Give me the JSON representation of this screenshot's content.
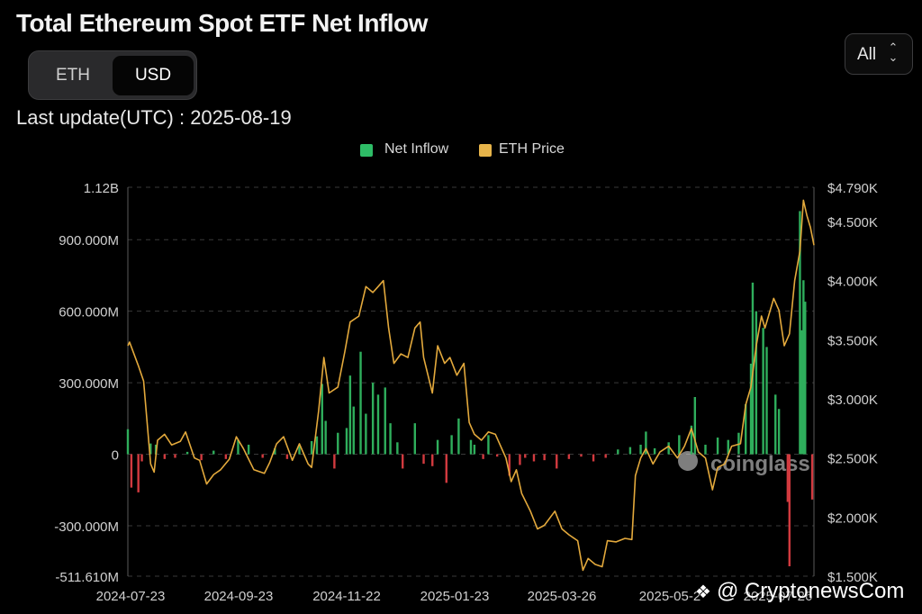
{
  "title": "Total Ethereum Spot ETF Net Inflow",
  "currency_toggle": {
    "options": [
      "ETH",
      "USD"
    ],
    "selected": "USD"
  },
  "range_select": {
    "value": "All"
  },
  "last_update": "Last update(UTC) : 2025-08-19",
  "watermark": "coinglass",
  "credit": {
    "mark": "❖",
    "text": "@ CryptonewsCom"
  },
  "colors": {
    "inflow": "#2fae5c",
    "outflow": "#d23a3f",
    "price": "#e3a93c",
    "legend_inflow": "#2ebd67",
    "legend_price": "#e7b44a",
    "grid": "#3a3a3a"
  },
  "chart_data": {
    "type": "bar",
    "legend": [
      "Net Inflow",
      "ETH Price"
    ],
    "legend_position": "top-center",
    "grid": "horizontal dashed",
    "x_tick_labels": [
      "2024-07-23",
      "2024-09-23",
      "2024-11-22",
      "2025-01-23",
      "2025-03-26",
      "2025-05-2",
      "2025-07-26"
    ],
    "left_axis": {
      "ticks": [
        -511610000,
        -300000000,
        0,
        300000000,
        600000000,
        900000000,
        1120000000
      ],
      "tick_labels": [
        "-511.610M",
        "-300.000M",
        "0",
        "300.000M",
        "600.000M",
        "900.000M",
        "1.12B"
      ],
      "range": [
        -511610000,
        1120000000
      ]
    },
    "right_axis": {
      "ticks": [
        1500,
        2000,
        2500,
        3000,
        3500,
        4000,
        4500,
        4790
      ],
      "tick_labels": [
        "$1.500K",
        "$2.000K",
        "$2.500K",
        "$3.000K",
        "$3.500K",
        "$4.000K",
        "$4.500K",
        "$4.790K"
      ],
      "range": [
        1500,
        4790
      ]
    },
    "series": [
      {
        "name": "Net Inflow",
        "axis": "left",
        "points": [
          [
            "2024-07-23",
            105000000
          ],
          [
            "2024-07-25",
            -140000000
          ],
          [
            "2024-07-29",
            -160000000
          ],
          [
            "2024-07-31",
            -30000000
          ],
          [
            "2024-08-05",
            45000000
          ],
          [
            "2024-08-08",
            40000000
          ],
          [
            "2024-08-13",
            -20000000
          ],
          [
            "2024-08-19",
            -15000000
          ],
          [
            "2024-08-26",
            10000000
          ],
          [
            "2024-09-03",
            -25000000
          ],
          [
            "2024-09-10",
            15000000
          ],
          [
            "2024-09-17",
            -20000000
          ],
          [
            "2024-09-24",
            60000000
          ],
          [
            "2024-09-30",
            40000000
          ],
          [
            "2024-10-08",
            -15000000
          ],
          [
            "2024-10-15",
            25000000
          ],
          [
            "2024-10-22",
            -20000000
          ],
          [
            "2024-10-29",
            40000000
          ],
          [
            "2024-11-05",
            55000000
          ],
          [
            "2024-11-08",
            75000000
          ],
          [
            "2024-11-11",
            295000000
          ],
          [
            "2024-11-13",
            140000000
          ],
          [
            "2024-11-18",
            -60000000
          ],
          [
            "2024-11-20",
            90000000
          ],
          [
            "2024-11-25",
            110000000
          ],
          [
            "2024-11-27",
            330000000
          ],
          [
            "2024-11-29",
            200000000
          ],
          [
            "2024-12-03",
            430000000
          ],
          [
            "2024-12-06",
            170000000
          ],
          [
            "2024-12-10",
            300000000
          ],
          [
            "2024-12-13",
            250000000
          ],
          [
            "2024-12-17",
            280000000
          ],
          [
            "2024-12-20",
            130000000
          ],
          [
            "2024-12-24",
            50000000
          ],
          [
            "2024-12-27",
            -60000000
          ],
          [
            "2025-01-03",
            130000000
          ],
          [
            "2025-01-08",
            -40000000
          ],
          [
            "2025-01-13",
            -50000000
          ],
          [
            "2025-01-16",
            60000000
          ],
          [
            "2025-01-21",
            -120000000
          ],
          [
            "2025-01-24",
            80000000
          ],
          [
            "2025-01-28",
            150000000
          ],
          [
            "2025-02-04",
            60000000
          ],
          [
            "2025-02-06",
            40000000
          ],
          [
            "2025-02-11",
            -20000000
          ],
          [
            "2025-02-14",
            80000000
          ],
          [
            "2025-02-19",
            -10000000
          ],
          [
            "2025-02-26",
            -90000000
          ],
          [
            "2025-03-04",
            -45000000
          ],
          [
            "2025-03-07",
            -15000000
          ],
          [
            "2025-03-12",
            -30000000
          ],
          [
            "2025-03-18",
            -25000000
          ],
          [
            "2025-03-25",
            -60000000
          ],
          [
            "2025-04-01",
            -20000000
          ],
          [
            "2025-04-08",
            -10000000
          ],
          [
            "2025-04-15",
            -30000000
          ],
          [
            "2025-04-22",
            -15000000
          ],
          [
            "2025-04-29",
            20000000
          ],
          [
            "2025-05-06",
            30000000
          ],
          [
            "2025-05-12",
            40000000
          ],
          [
            "2025-05-15",
            95000000
          ],
          [
            "2025-05-20",
            25000000
          ],
          [
            "2025-05-28",
            50000000
          ],
          [
            "2025-06-03",
            80000000
          ],
          [
            "2025-06-10",
            120000000
          ],
          [
            "2025-06-12",
            240000000
          ],
          [
            "2025-06-18",
            40000000
          ],
          [
            "2025-06-25",
            70000000
          ],
          [
            "2025-07-01",
            60000000
          ],
          [
            "2025-07-07",
            90000000
          ],
          [
            "2025-07-11",
            210000000
          ],
          [
            "2025-07-14",
            380000000
          ],
          [
            "2025-07-15",
            720000000
          ],
          [
            "2025-07-17",
            600000000
          ],
          [
            "2025-07-21",
            530000000
          ],
          [
            "2025-07-23",
            450000000
          ],
          [
            "2025-07-28",
            250000000
          ],
          [
            "2025-07-30",
            190000000
          ],
          [
            "2025-08-04",
            -200000000
          ],
          [
            "2025-08-05",
            -470000000
          ],
          [
            "2025-08-11",
            1020000000
          ],
          [
            "2025-08-12",
            520000000
          ],
          [
            "2025-08-13",
            730000000
          ],
          [
            "2025-08-14",
            640000000
          ],
          [
            "2025-08-18",
            -190000000
          ]
        ]
      },
      {
        "name": "ETH Price",
        "axis": "right",
        "points": [
          [
            "2024-07-23",
            3450
          ],
          [
            "2024-07-24",
            3480
          ],
          [
            "2024-07-29",
            3280
          ],
          [
            "2024-08-01",
            3150
          ],
          [
            "2024-08-05",
            2450
          ],
          [
            "2024-08-07",
            2380
          ],
          [
            "2024-08-09",
            2650
          ],
          [
            "2024-08-13",
            2700
          ],
          [
            "2024-08-17",
            2610
          ],
          [
            "2024-08-22",
            2640
          ],
          [
            "2024-08-25",
            2720
          ],
          [
            "2024-08-30",
            2500
          ],
          [
            "2024-09-02",
            2480
          ],
          [
            "2024-09-06",
            2280
          ],
          [
            "2024-09-10",
            2360
          ],
          [
            "2024-09-14",
            2400
          ],
          [
            "2024-09-19",
            2490
          ],
          [
            "2024-09-23",
            2680
          ],
          [
            "2024-09-27",
            2580
          ],
          [
            "2024-10-03",
            2400
          ],
          [
            "2024-10-09",
            2370
          ],
          [
            "2024-10-12",
            2460
          ],
          [
            "2024-10-16",
            2620
          ],
          [
            "2024-10-20",
            2680
          ],
          [
            "2024-10-25",
            2480
          ],
          [
            "2024-10-29",
            2620
          ],
          [
            "2024-11-03",
            2450
          ],
          [
            "2024-11-05",
            2420
          ],
          [
            "2024-11-09",
            2900
          ],
          [
            "2024-11-12",
            3350
          ],
          [
            "2024-11-15",
            3050
          ],
          [
            "2024-11-20",
            3100
          ],
          [
            "2024-11-24",
            3400
          ],
          [
            "2024-11-27",
            3650
          ],
          [
            "2024-12-02",
            3700
          ],
          [
            "2024-12-06",
            3950
          ],
          [
            "2024-12-10",
            3900
          ],
          [
            "2024-12-13",
            3950
          ],
          [
            "2024-12-16",
            4000
          ],
          [
            "2024-12-19",
            3600
          ],
          [
            "2024-12-22",
            3300
          ],
          [
            "2024-12-26",
            3380
          ],
          [
            "2024-12-30",
            3350
          ],
          [
            "2025-01-03",
            3600
          ],
          [
            "2025-01-06",
            3650
          ],
          [
            "2025-01-08",
            3350
          ],
          [
            "2025-01-13",
            3050
          ],
          [
            "2025-01-16",
            3450
          ],
          [
            "2025-01-20",
            3300
          ],
          [
            "2025-01-23",
            3350
          ],
          [
            "2025-01-27",
            3200
          ],
          [
            "2025-01-31",
            3300
          ],
          [
            "2025-02-03",
            2800
          ],
          [
            "2025-02-06",
            2700
          ],
          [
            "2025-02-10",
            2650
          ],
          [
            "2025-02-14",
            2720
          ],
          [
            "2025-02-18",
            2700
          ],
          [
            "2025-02-24",
            2500
          ],
          [
            "2025-02-27",
            2300
          ],
          [
            "2025-03-02",
            2400
          ],
          [
            "2025-03-05",
            2200
          ],
          [
            "2025-03-10",
            2050
          ],
          [
            "2025-03-14",
            1900
          ],
          [
            "2025-03-18",
            1930
          ],
          [
            "2025-03-24",
            2050
          ],
          [
            "2025-03-28",
            1900
          ],
          [
            "2025-04-01",
            1850
          ],
          [
            "2025-04-06",
            1800
          ],
          [
            "2025-04-09",
            1550
          ],
          [
            "2025-04-12",
            1650
          ],
          [
            "2025-04-16",
            1600
          ],
          [
            "2025-04-20",
            1580
          ],
          [
            "2025-04-23",
            1800
          ],
          [
            "2025-04-28",
            1790
          ],
          [
            "2025-05-03",
            1820
          ],
          [
            "2025-05-07",
            1810
          ],
          [
            "2025-05-09",
            2350
          ],
          [
            "2025-05-12",
            2500
          ],
          [
            "2025-05-15",
            2580
          ],
          [
            "2025-05-19",
            2450
          ],
          [
            "2025-05-23",
            2550
          ],
          [
            "2025-05-28",
            2600
          ],
          [
            "2025-06-02",
            2500
          ],
          [
            "2025-06-06",
            2600
          ],
          [
            "2025-06-10",
            2750
          ],
          [
            "2025-06-14",
            2550
          ],
          [
            "2025-06-18",
            2500
          ],
          [
            "2025-06-22",
            2230
          ],
          [
            "2025-06-25",
            2420
          ],
          [
            "2025-06-29",
            2450
          ],
          [
            "2025-07-03",
            2600
          ],
          [
            "2025-07-08",
            2620
          ],
          [
            "2025-07-11",
            2950
          ],
          [
            "2025-07-14",
            3100
          ],
          [
            "2025-07-17",
            3450
          ],
          [
            "2025-07-20",
            3700
          ],
          [
            "2025-07-22",
            3600
          ],
          [
            "2025-07-24",
            3700
          ],
          [
            "2025-07-27",
            3850
          ],
          [
            "2025-07-30",
            3750
          ],
          [
            "2025-08-02",
            3450
          ],
          [
            "2025-08-05",
            3550
          ],
          [
            "2025-08-08",
            4000
          ],
          [
            "2025-08-11",
            4250
          ],
          [
            "2025-08-13",
            4680
          ],
          [
            "2025-08-15",
            4550
          ],
          [
            "2025-08-17",
            4450
          ],
          [
            "2025-08-19",
            4300
          ]
        ]
      }
    ]
  }
}
